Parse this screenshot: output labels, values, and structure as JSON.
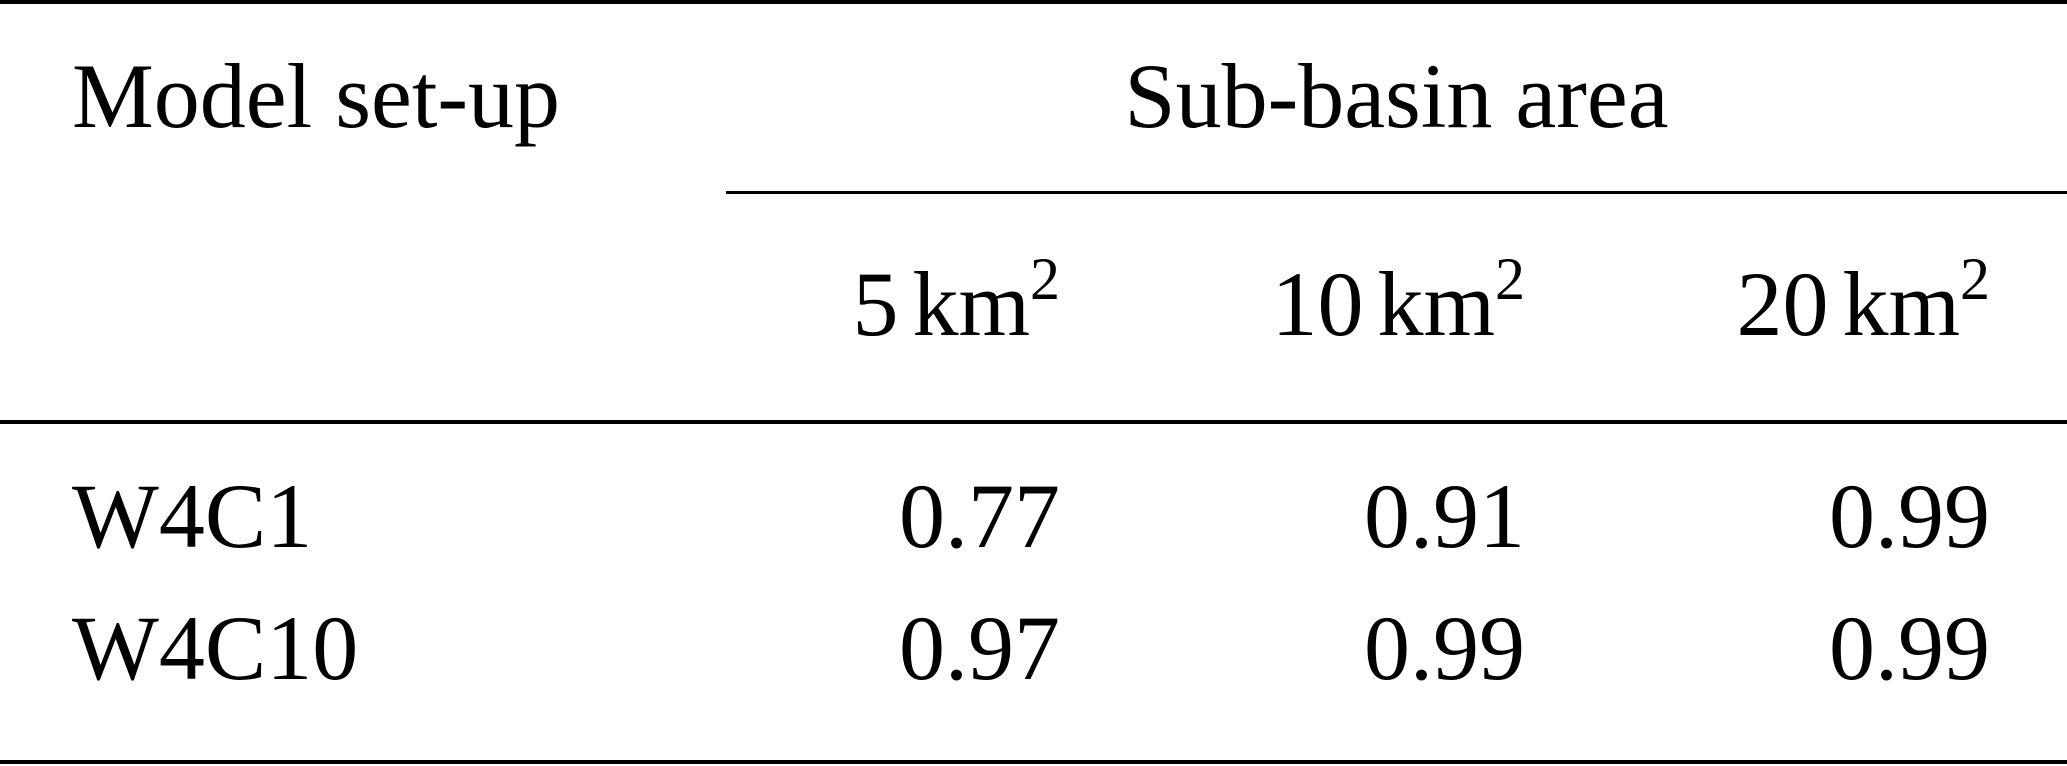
{
  "table": {
    "header": {
      "model_label": "Model set-up",
      "group_label": "Sub-basin area",
      "columns": [
        {
          "value": "5",
          "unit": "km",
          "exponent": "2"
        },
        {
          "value": "10",
          "unit": "km",
          "exponent": "2"
        },
        {
          "value": "20",
          "unit": "km",
          "exponent": "2"
        }
      ]
    },
    "rows": [
      {
        "model": "W4C1",
        "values": [
          "0.77",
          "0.91",
          "0.99"
        ]
      },
      {
        "model": "W4C10",
        "values": [
          "0.97",
          "0.99",
          "0.99"
        ]
      }
    ]
  }
}
